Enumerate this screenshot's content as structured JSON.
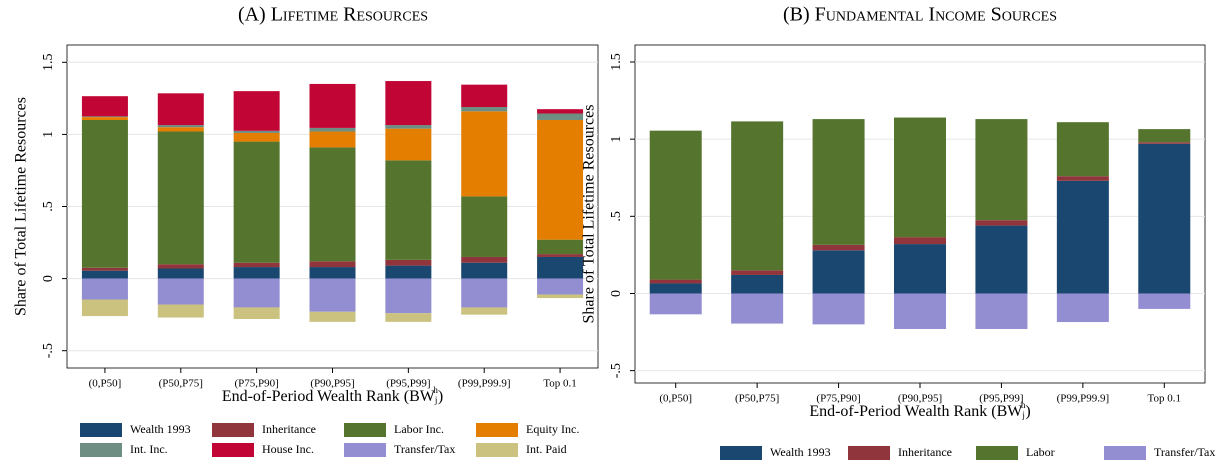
{
  "chart_data": [
    {
      "type": "stacked_bar",
      "title": "(A) Lifetime Resources",
      "y_label": "Share of Total Lifetime Resources",
      "x_label": [
        "End-of-Period Wealth Rank (BW",
        "j",
        "h",
        ")"
      ],
      "categories": [
        "(0,P50]",
        "(P50,P75]",
        "(P75,P90]",
        "(P90,P95]",
        "(P95,P99]",
        "(P99,P99.9]",
        "Top 0.1"
      ],
      "ylim": [
        -0.62,
        1.62
      ],
      "yticks": [
        {
          "value": -0.5,
          "label": "-.5"
        },
        0,
        {
          "value": 0.5,
          "label": ".5"
        },
        1,
        1.5
      ],
      "grid": true,
      "series": [
        {
          "name": "Wealth 1993",
          "color": "#1a476f",
          "values": [
            0.055,
            0.07,
            0.08,
            0.08,
            0.09,
            0.11,
            0.15
          ]
        },
        {
          "name": "Inheritance",
          "color": "#90353b",
          "values": [
            0.02,
            0.03,
            0.03,
            0.04,
            0.04,
            0.04,
            0.02
          ]
        },
        {
          "name": "Labor Inc.",
          "color": "#55752f",
          "values": [
            1.025,
            0.92,
            0.84,
            0.79,
            0.69,
            0.42,
            0.1
          ]
        },
        {
          "name": "Equity Inc.",
          "color": "#e37e00",
          "values": [
            0.02,
            0.03,
            0.06,
            0.11,
            0.22,
            0.59,
            0.83
          ]
        },
        {
          "name": "Int. Inc.",
          "color": "#6e8e84",
          "values": [
            0.005,
            0.015,
            0.015,
            0.025,
            0.025,
            0.03,
            0.045
          ]
        },
        {
          "name": "House Inc.",
          "color": "#c10534",
          "values": [
            0.14,
            0.22,
            0.275,
            0.305,
            0.305,
            0.155,
            0.03
          ]
        },
        {
          "name": "Transfer/Tax",
          "color": "#938dd2",
          "values": [
            -0.145,
            -0.18,
            -0.2,
            -0.23,
            -0.24,
            -0.2,
            -0.11
          ]
        },
        {
          "name": "Int. Paid",
          "color": "#cac27e",
          "values": [
            -0.115,
            -0.09,
            -0.08,
            -0.07,
            -0.06,
            -0.05,
            -0.025
          ]
        }
      ]
    },
    {
      "type": "stacked_bar",
      "title": "(B) Fundamental Income Sources",
      "y_label": "Share of Total Lifetime Resources",
      "x_label": [
        "End-of-Period Wealth Rank (BW",
        "j",
        "h",
        ")"
      ],
      "categories": [
        "(0,P50]",
        "(P50,P75]",
        "(P75,P90]",
        "(P90,P95]",
        "(P95,P99]",
        "(P99,P99.9]",
        "Top 0.1"
      ],
      "ylim": [
        -0.58,
        1.61
      ],
      "yticks": [
        {
          "value": -0.5,
          "label": "-.5"
        },
        0,
        {
          "value": 0.5,
          "label": ".5"
        },
        1,
        1.5
      ],
      "grid": true,
      "series": [
        {
          "name": "Wealth 1993",
          "color": "#1a476f",
          "values": [
            0.065,
            0.12,
            0.28,
            0.32,
            0.44,
            0.73,
            0.97
          ]
        },
        {
          "name": "Inheritance",
          "color": "#90353b",
          "values": [
            0.025,
            0.03,
            0.035,
            0.045,
            0.035,
            0.03,
            0.01
          ]
        },
        {
          "name": "Labor",
          "color": "#55752f",
          "values": [
            0.965,
            0.965,
            0.815,
            0.775,
            0.655,
            0.35,
            0.085
          ]
        },
        {
          "name": "Transfer/Tax",
          "color": "#938dd2",
          "values": [
            -0.135,
            -0.195,
            -0.2,
            -0.23,
            -0.23,
            -0.185,
            -0.1
          ]
        }
      ]
    }
  ]
}
